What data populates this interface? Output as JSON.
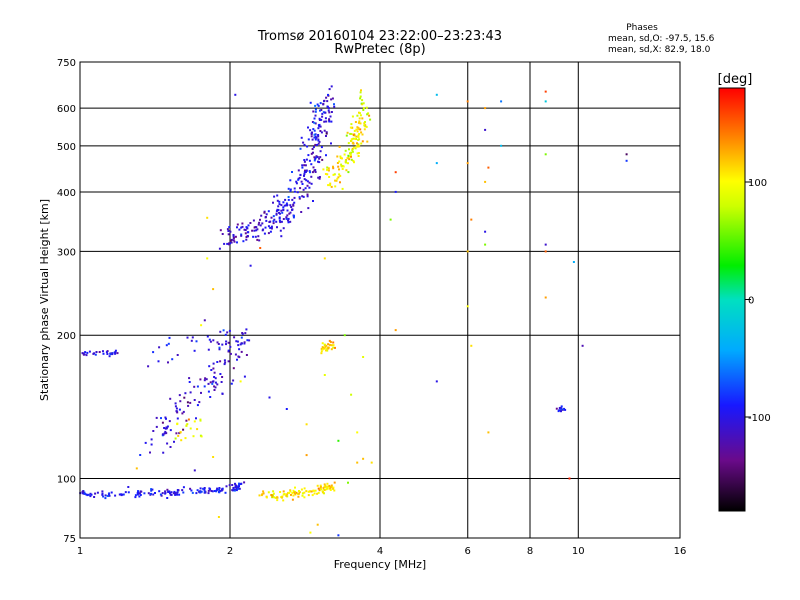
{
  "chart_data": {
    "type": "scatter",
    "title": "Tromsø 20160104 23:22:00–23:23:43",
    "subtitle": "RwPretec (8p)",
    "xlabel": "Frequency [MHz]",
    "ylabel": "Stationary phase Virtual Height [km]",
    "x_scale": "log",
    "y_scale": "log",
    "xlim": [
      1,
      16
    ],
    "ylim": [
      75,
      750
    ],
    "x_ticks": [
      "1",
      "2",
      "4",
      "6",
      "8",
      "10",
      "16"
    ],
    "y_ticks": [
      "75",
      "100",
      "200",
      "300",
      "400",
      "500",
      "600",
      "750"
    ],
    "grid": true,
    "phase_stats": {
      "header": "Phases",
      "line_o": "mean, sd,O: -97.5, 15.6",
      "line_x": "mean, sd,X:  82.9, 18.0"
    },
    "colorbar": {
      "label": "[deg]",
      "range": [
        -180,
        180
      ],
      "ticks": [
        "100",
        "0",
        "-100"
      ],
      "tick_values": [
        100,
        0,
        -100
      ]
    },
    "clusters": [
      {
        "kind": "line",
        "x": [
          1.0,
          1.08,
          1.18,
          1.28,
          1.4,
          1.52,
          1.62,
          1.74,
          1.86,
          1.96,
          2.05,
          2.12
        ],
        "y": [
          93,
          93,
          92.5,
          93,
          93.5,
          93,
          94,
          94,
          94.5,
          95,
          95.5,
          97
        ],
        "phase": -95,
        "n": 160,
        "sx": 0.012,
        "sy": 0.008
      },
      {
        "kind": "line",
        "x": [
          1.0,
          1.07,
          1.14,
          1.2
        ],
        "y": [
          183,
          183,
          183,
          183
        ],
        "phase": -100,
        "n": 30,
        "sx": 0.01,
        "sy": 0.006
      },
      {
        "kind": "line",
        "x": [
          1.95,
          2.05,
          2.2,
          2.4,
          2.6,
          2.8,
          2.95,
          3.05,
          3.15
        ],
        "y": [
          317,
          322,
          333,
          345,
          365,
          400,
          450,
          540,
          640
        ],
        "phase": -110,
        "n": 240,
        "sx": 0.025,
        "sy": 0.035
      },
      {
        "kind": "line",
        "x": [
          2.45,
          2.6,
          2.75,
          2.85,
          2.95,
          3.05
        ],
        "y": [
          335,
          370,
          420,
          480,
          560,
          630
        ],
        "phase": -95,
        "n": 90,
        "sx": 0.025,
        "sy": 0.03
      },
      {
        "kind": "line",
        "x": [
          3.15,
          3.3,
          3.45,
          3.6,
          3.7
        ],
        "y": [
          420,
          440,
          470,
          520,
          580
        ],
        "phase": 110,
        "n": 90,
        "sx": 0.02,
        "sy": 0.03
      },
      {
        "kind": "line",
        "x": [
          3.4,
          3.55,
          3.65,
          3.72
        ],
        "y": [
          470,
          510,
          560,
          630
        ],
        "phase": 90,
        "n": 60,
        "sx": 0.015,
        "sy": 0.04
      },
      {
        "kind": "line",
        "x": [
          1.4,
          1.55,
          1.7,
          1.9,
          2.05
        ],
        "y": [
          118,
          135,
          150,
          165,
          180
        ],
        "phase": -110,
        "n": 110,
        "sx": 0.03,
        "sy": 0.05
      },
      {
        "kind": "line",
        "x": [
          1.4,
          1.6,
          1.85,
          2.05,
          2.15
        ],
        "y": [
          185,
          190,
          195,
          198,
          200
        ],
        "phase": -100,
        "n": 50,
        "sx": 0.02,
        "sy": 0.03
      },
      {
        "kind": "line",
        "x": [
          2.3,
          2.5,
          2.7,
          2.9,
          3.05,
          3.2
        ],
        "y": [
          92,
          92,
          93,
          94,
          95,
          96
        ],
        "phase": 105,
        "n": 110,
        "sx": 0.018,
        "sy": 0.01
      },
      {
        "kind": "line",
        "x": [
          3.05,
          3.15,
          3.25
        ],
        "y": [
          188,
          190,
          190
        ],
        "phase": 115,
        "n": 30,
        "sx": 0.01,
        "sy": 0.01
      },
      {
        "kind": "line",
        "x": [
          1.55,
          1.65,
          1.75
        ],
        "y": [
          125,
          128,
          130
        ],
        "phase": 100,
        "n": 20,
        "sx": 0.02,
        "sy": 0.03
      },
      {
        "kind": "line",
        "x": [
          9.1,
          9.35
        ],
        "y": [
          140,
          140
        ],
        "phase": -95,
        "n": 16,
        "sx": 0.005,
        "sy": 0.005
      }
    ],
    "sparse_points": [
      [
        2.05,
        640,
        -100
      ],
      [
        4.3,
        400,
        -90
      ],
      [
        4.3,
        440,
        160
      ],
      [
        4.3,
        205,
        130
      ],
      [
        5.2,
        640,
        -30
      ],
      [
        5.2,
        160,
        -100
      ],
      [
        5.2,
        460,
        -40
      ],
      [
        6.0,
        620,
        140
      ],
      [
        6.0,
        460,
        130
      ],
      [
        6.0,
        300,
        120
      ],
      [
        6.0,
        230,
        100
      ],
      [
        6.1,
        350,
        140
      ],
      [
        6.1,
        190,
        110
      ],
      [
        6.5,
        600,
        130
      ],
      [
        6.5,
        540,
        -110
      ],
      [
        6.5,
        420,
        120
      ],
      [
        6.5,
        330,
        -100
      ],
      [
        6.5,
        310,
        60
      ],
      [
        6.6,
        450,
        150
      ],
      [
        6.6,
        125,
        120
      ],
      [
        7.0,
        620,
        -60
      ],
      [
        7.0,
        500,
        -30
      ],
      [
        8.6,
        650,
        160
      ],
      [
        8.6,
        620,
        -20
      ],
      [
        8.6,
        480,
        60
      ],
      [
        8.6,
        300,
        150
      ],
      [
        8.6,
        240,
        130
      ],
      [
        8.6,
        310,
        -110
      ],
      [
        9.6,
        100,
        170
      ],
      [
        9.8,
        285,
        -40
      ],
      [
        10.2,
        190,
        -120
      ],
      [
        12.5,
        480,
        -150
      ],
      [
        12.5,
        465,
        -80
      ],
      [
        4.2,
        350,
        60
      ],
      [
        3.5,
        150,
        80
      ],
      [
        3.6,
        108,
        120
      ],
      [
        3.6,
        125,
        100
      ],
      [
        3.7,
        110,
        120
      ],
      [
        2.85,
        130,
        110
      ],
      [
        2.85,
        112,
        130
      ],
      [
        3.1,
        165,
        90
      ],
      [
        2.6,
        140,
        -90
      ],
      [
        2.4,
        148,
        -100
      ],
      [
        1.8,
        353,
        110
      ],
      [
        1.8,
        290,
        100
      ],
      [
        1.85,
        250,
        120
      ],
      [
        1.78,
        215,
        -120
      ],
      [
        1.75,
        210,
        100
      ],
      [
        1.85,
        111,
        110
      ],
      [
        1.7,
        104,
        -110
      ],
      [
        2.1,
        160,
        100
      ],
      [
        2.9,
        77,
        100
      ],
      [
        3.3,
        76,
        -80
      ],
      [
        2.3,
        305,
        150
      ],
      [
        2.2,
        280,
        -100
      ],
      [
        3.1,
        290,
        110
      ],
      [
        3.4,
        200,
        60
      ],
      [
        3.7,
        180,
        90
      ],
      [
        1.3,
        105,
        120
      ],
      [
        1.25,
        96,
        -100
      ],
      [
        1.9,
        83,
        110
      ],
      [
        3.0,
        80,
        120
      ],
      [
        3.3,
        120,
        40
      ],
      [
        3.45,
        98,
        60
      ],
      [
        3.85,
        108,
        110
      ]
    ]
  }
}
